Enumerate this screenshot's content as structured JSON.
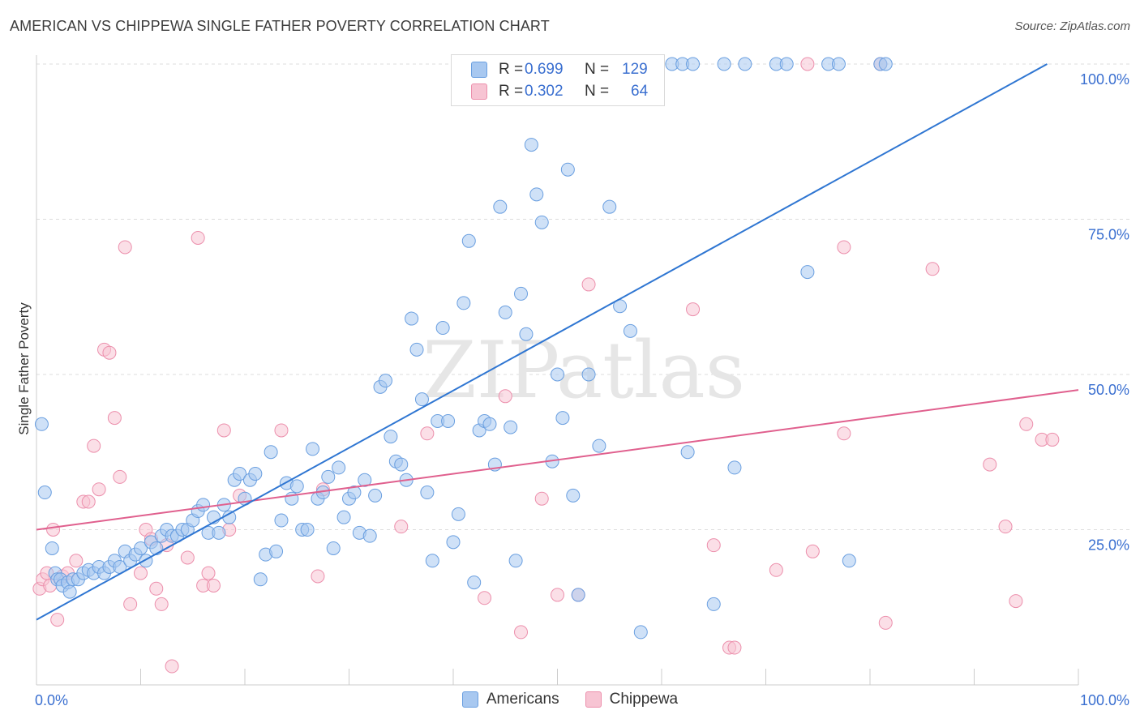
{
  "header": {
    "title": "AMERICAN VS CHIPPEWA SINGLE FATHER POVERTY CORRELATION CHART",
    "source": "Source: ZipAtlas.com"
  },
  "watermark": "ZIPatlas",
  "legend_top": {
    "rows": [
      {
        "r_label": "R =",
        "r_value": "0.699",
        "n_label": "N =",
        "n_value": "129",
        "color": "#a8c8f0"
      },
      {
        "r_label": "R =",
        "r_value": "0.302",
        "n_label": "N =",
        "n_value": "64",
        "color": "#f7b8cb"
      }
    ]
  },
  "colors": {
    "americans_fill": "#a8c8f0",
    "americans_stroke": "#6a9fe0",
    "americans_line": "#2f76d2",
    "chippewa_fill": "#f7c4d3",
    "chippewa_stroke": "#ec8fac",
    "chippewa_line": "#e0608e",
    "tick_label": "#3a6fd0",
    "grid": "#dddddd"
  },
  "chart_data": {
    "type": "scatter",
    "title": "AMERICAN VS CHIPPEWA SINGLE FATHER POVERTY CORRELATION CHART",
    "xlabel": "",
    "ylabel": "Single Father Poverty",
    "xlim": [
      0,
      100
    ],
    "ylim": [
      0,
      100
    ],
    "x_tick_labels": [
      "0.0%",
      "100.0%"
    ],
    "y_tick_labels": [
      "25.0%",
      "50.0%",
      "75.0%",
      "100.0%"
    ],
    "y_ticks": [
      25,
      50,
      75,
      100
    ],
    "grid": true,
    "legend": "bottom-center",
    "series": [
      {
        "name": "Americans",
        "r": 0.699,
        "n": 129,
        "trend": [
          [
            0,
            10.5
          ],
          [
            97,
            100
          ]
        ],
        "points": [
          [
            0.5,
            42
          ],
          [
            0.8,
            31
          ],
          [
            1.5,
            22
          ],
          [
            1.8,
            18
          ],
          [
            2,
            17
          ],
          [
            2.3,
            17
          ],
          [
            2.5,
            16
          ],
          [
            3,
            16.5
          ],
          [
            3.2,
            15
          ],
          [
            3.5,
            17
          ],
          [
            4,
            17
          ],
          [
            4.5,
            18
          ],
          [
            5,
            18.5
          ],
          [
            5.5,
            18
          ],
          [
            6,
            19
          ],
          [
            6.5,
            18
          ],
          [
            7,
            19
          ],
          [
            7.5,
            20
          ],
          [
            8,
            19
          ],
          [
            8.5,
            21.5
          ],
          [
            9,
            20
          ],
          [
            9.5,
            21
          ],
          [
            10,
            22
          ],
          [
            10.5,
            20
          ],
          [
            11,
            23
          ],
          [
            11.5,
            22
          ],
          [
            12,
            24
          ],
          [
            12.5,
            25
          ],
          [
            13,
            24
          ],
          [
            13.5,
            24
          ],
          [
            14,
            25
          ],
          [
            14.5,
            25
          ],
          [
            15,
            26.5
          ],
          [
            15.5,
            28
          ],
          [
            16,
            29
          ],
          [
            16.5,
            24.5
          ],
          [
            17,
            27
          ],
          [
            17.5,
            24.5
          ],
          [
            18,
            29
          ],
          [
            18.5,
            27
          ],
          [
            19,
            33
          ],
          [
            19.5,
            34
          ],
          [
            20,
            30
          ],
          [
            20.5,
            33
          ],
          [
            21,
            34
          ],
          [
            21.5,
            17
          ],
          [
            22,
            21
          ],
          [
            22.5,
            37.5
          ],
          [
            23,
            21.5
          ],
          [
            23.5,
            26.5
          ],
          [
            24,
            32.5
          ],
          [
            24.5,
            30
          ],
          [
            25,
            32
          ],
          [
            25.5,
            25
          ],
          [
            26,
            25
          ],
          [
            26.5,
            38
          ],
          [
            27,
            30
          ],
          [
            27.5,
            31
          ],
          [
            28,
            33.5
          ],
          [
            28.5,
            22
          ],
          [
            29,
            35
          ],
          [
            29.5,
            27
          ],
          [
            30,
            30
          ],
          [
            30.5,
            31
          ],
          [
            31,
            24.5
          ],
          [
            31.5,
            33
          ],
          [
            32,
            24
          ],
          [
            32.5,
            30.5
          ],
          [
            33,
            48
          ],
          [
            33.5,
            49
          ],
          [
            34,
            40
          ],
          [
            34.5,
            36
          ],
          [
            35,
            35.5
          ],
          [
            35.5,
            33
          ],
          [
            36,
            59
          ],
          [
            36.5,
            54
          ],
          [
            37,
            46
          ],
          [
            37.5,
            31
          ],
          [
            38,
            20
          ],
          [
            38.5,
            42.5
          ],
          [
            39,
            57.5
          ],
          [
            39.5,
            42.5
          ],
          [
            40,
            23
          ],
          [
            40.5,
            27.5
          ],
          [
            41,
            61.5
          ],
          [
            41.5,
            71.5
          ],
          [
            42,
            16.5
          ],
          [
            42.5,
            41
          ],
          [
            43,
            42.5
          ],
          [
            43.5,
            42
          ],
          [
            44,
            35.5
          ],
          [
            44.5,
            77
          ],
          [
            45,
            60
          ],
          [
            45.5,
            41.5
          ],
          [
            46,
            20
          ],
          [
            46.5,
            63
          ],
          [
            47,
            56.5
          ],
          [
            47.5,
            87
          ],
          [
            48,
            79
          ],
          [
            48.5,
            74.5
          ],
          [
            49,
            100
          ],
          [
            49.5,
            36
          ],
          [
            50,
            50
          ],
          [
            50.5,
            43
          ],
          [
            51,
            83
          ],
          [
            51.5,
            30.5
          ],
          [
            52,
            14.5
          ],
          [
            53,
            50
          ],
          [
            54,
            38.5
          ],
          [
            55,
            77
          ],
          [
            56,
            61
          ],
          [
            57,
            57
          ],
          [
            58,
            8.5
          ],
          [
            61,
            100
          ],
          [
            62,
            100
          ],
          [
            62.5,
            37.5
          ],
          [
            63,
            100
          ],
          [
            65,
            13
          ],
          [
            66,
            100
          ],
          [
            67,
            35
          ],
          [
            68,
            100
          ],
          [
            71,
            100
          ],
          [
            72,
            100
          ],
          [
            74,
            66.5
          ],
          [
            76,
            100
          ],
          [
            77,
            100
          ],
          [
            78,
            20
          ],
          [
            81,
            100
          ],
          [
            81.5,
            100
          ]
        ]
      },
      {
        "name": "Chippewa",
        "r": 0.302,
        "n": 64,
        "trend": [
          [
            0,
            25
          ],
          [
            100,
            47.5
          ]
        ],
        "points": [
          [
            0.3,
            15.5
          ],
          [
            0.6,
            17
          ],
          [
            1,
            18
          ],
          [
            1.3,
            16
          ],
          [
            1.6,
            25
          ],
          [
            2,
            10.5
          ],
          [
            2.5,
            17.5
          ],
          [
            3,
            18
          ],
          [
            3.8,
            20
          ],
          [
            4.5,
            29.5
          ],
          [
            5,
            29.5
          ],
          [
            5.5,
            38.5
          ],
          [
            6,
            31.5
          ],
          [
            6.5,
            54
          ],
          [
            7,
            53.5
          ],
          [
            7.5,
            43
          ],
          [
            8,
            33.5
          ],
          [
            8.5,
            70.5
          ],
          [
            9,
            13
          ],
          [
            10,
            18
          ],
          [
            10.5,
            25
          ],
          [
            11,
            23.5
          ],
          [
            11.5,
            15.5
          ],
          [
            12,
            13
          ],
          [
            12.5,
            22.5
          ],
          [
            13,
            3
          ],
          [
            14.5,
            20.5
          ],
          [
            15.5,
            72
          ],
          [
            16,
            16
          ],
          [
            16.5,
            18
          ],
          [
            17,
            16
          ],
          [
            18,
            41
          ],
          [
            18.5,
            25
          ],
          [
            19.5,
            30.5
          ],
          [
            23.5,
            41
          ],
          [
            27,
            17.5
          ],
          [
            27.5,
            31.5
          ],
          [
            35,
            25.5
          ],
          [
            37.5,
            40.5
          ],
          [
            43,
            14
          ],
          [
            45,
            46.5
          ],
          [
            46.5,
            8.5
          ],
          [
            48.5,
            30
          ],
          [
            50,
            14.5
          ],
          [
            52,
            14.5
          ],
          [
            53,
            64.5
          ],
          [
            63,
            60.5
          ],
          [
            65,
            22.5
          ],
          [
            66.5,
            6
          ],
          [
            67,
            6
          ],
          [
            71,
            18.5
          ],
          [
            74,
            100
          ],
          [
            74.5,
            21.5
          ],
          [
            77.5,
            70.5
          ],
          [
            77.5,
            40.5
          ],
          [
            81,
            100
          ],
          [
            81.5,
            10
          ],
          [
            86,
            67
          ],
          [
            91.5,
            35.5
          ],
          [
            93,
            25.5
          ],
          [
            94,
            13.5
          ],
          [
            95,
            42
          ],
          [
            96.5,
            39.5
          ],
          [
            97.5,
            39.5
          ]
        ]
      }
    ]
  },
  "bottom_legend": {
    "items": [
      {
        "label": "Americans"
      },
      {
        "label": "Chippewa"
      }
    ]
  }
}
